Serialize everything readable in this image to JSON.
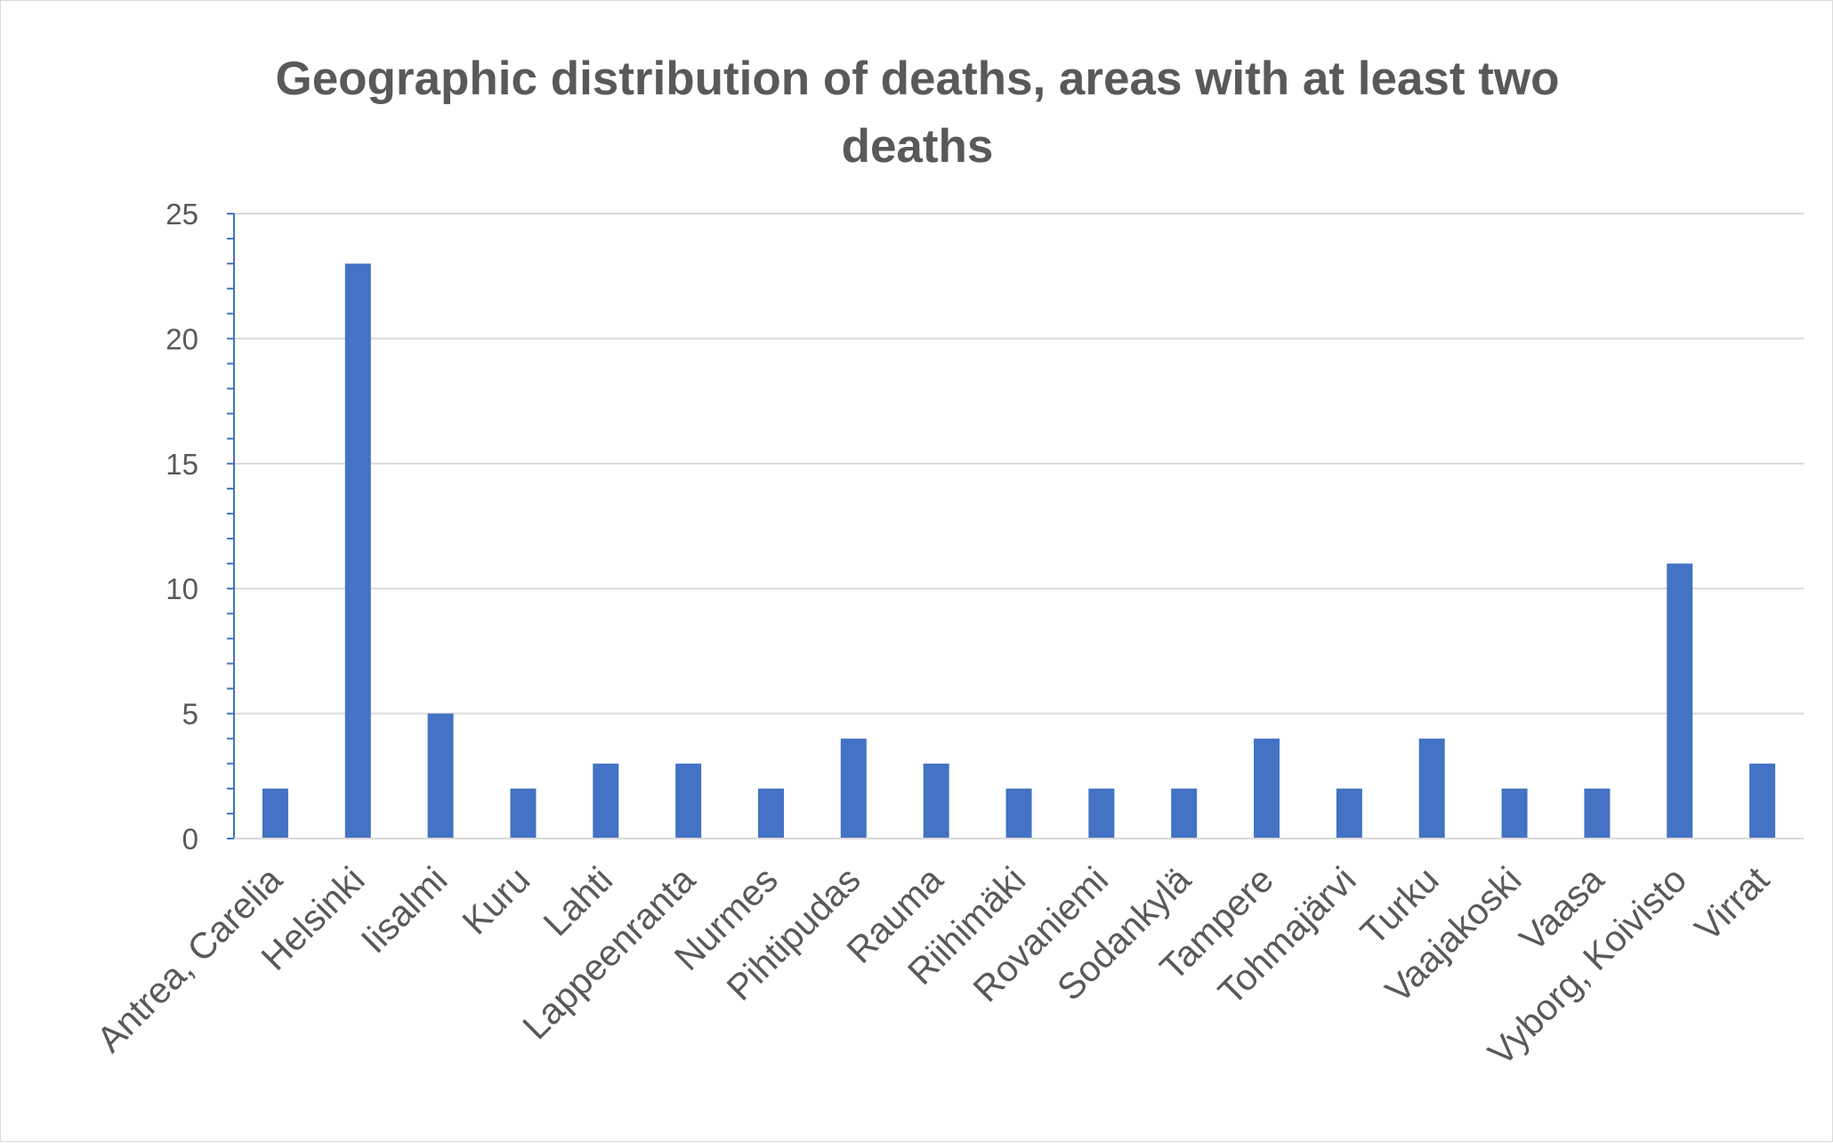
{
  "chart_data": {
    "type": "bar",
    "title_lines": [
      "Geographic distribution of deaths, areas with at least two",
      "deaths"
    ],
    "xlabel": "",
    "ylabel": "",
    "ylim": [
      0,
      25
    ],
    "y_ticks": [
      0,
      5,
      10,
      15,
      20,
      25
    ],
    "grid": true,
    "bar_color": "#4472C4",
    "categories": [
      "Antrea, Carelia",
      "Helsinki",
      "Iisalmi",
      "Kuru",
      "Lahti",
      "Lappeenranta",
      "Nurmes",
      "Pihtipudas",
      "Rauma",
      "Riihimäki",
      "Rovaniemi",
      "Sodankylä",
      "Tampere",
      "Tohmajärvi",
      "Turku",
      "Vaajakoski",
      "Vaasa",
      "Vyborg, Koivisto",
      "Virrat"
    ],
    "values": [
      2,
      23,
      5,
      2,
      3,
      3,
      2,
      4,
      3,
      2,
      2,
      2,
      4,
      2,
      4,
      2,
      2,
      11,
      3
    ]
  }
}
